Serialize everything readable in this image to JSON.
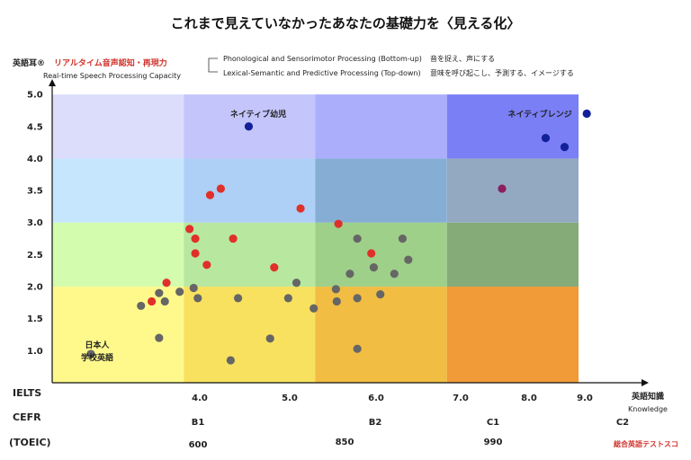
{
  "title": "これまで見えていなかったあなたの基礎力を〈見える化〉",
  "y_axis": {
    "name": "英語耳®",
    "name_red": "リアルタイム音声認知・再現力",
    "subtitle": "Real-time Speech Processing Capacity"
  },
  "x_axis": {
    "name": "英語知識",
    "name_en": "Knowledge",
    "row_labels": [
      "IELTS",
      "CEFR",
      "(TOEIC)"
    ],
    "ielts_ticks": [
      "4.0",
      "5.0",
      "6.0",
      "7.0",
      "8.0",
      "9.0"
    ],
    "cefr_ticks": [
      "B1",
      "B2",
      "C1",
      "C2"
    ],
    "toeic_ticks": [
      "600",
      "850",
      "990"
    ],
    "toeic_note": "総合英語テストスコ"
  },
  "legend": {
    "bottom_up": "Phonological and Sensorimotor Processing (Bottom-up)",
    "bottom_up_ja": "音を捉え、声にする",
    "top_down": "Lexical-Semantic and Predictive Processing (Top-down)",
    "top_down_ja": "意味を呼び起こし、予測する、イメージする"
  },
  "annotations": {
    "native_child": "ネイティブ幼児",
    "native_range": "ネイティブレンジ",
    "jp_school_1": "日本人",
    "jp_school_2": "学校英語"
  },
  "colors": {
    "red": "#e0302a",
    "gray": "#666666",
    "navy": "#12209a",
    "purple": "#8c1f5e"
  },
  "chart_data": {
    "type": "scatter",
    "x_label": "英語知識 Knowledge",
    "y_label": "英語耳® Real-time Speech Processing Capacity",
    "y_ticks": [
      1.0,
      1.5,
      2.0,
      2.5,
      3.0,
      3.5,
      4.0,
      4.5,
      5.0
    ],
    "xlim": [
      2.4,
      9.5
    ],
    "ylim": [
      0.5,
      5.1
    ],
    "grid": {
      "x_bounds": [
        2.4,
        4.0,
        5.6,
        7.2,
        8.8
      ],
      "y_bounds": [
        0.5,
        2.0,
        3.0,
        4.0,
        5.0
      ]
    },
    "series": [
      {
        "color": "red",
        "points": [
          [
            3.61,
            1.77
          ],
          [
            3.79,
            2.06
          ],
          [
            4.07,
            2.9
          ],
          [
            4.14,
            2.52
          ],
          [
            4.14,
            2.75
          ],
          [
            4.28,
            2.34
          ],
          [
            4.32,
            3.43
          ],
          [
            4.45,
            3.53
          ],
          [
            4.6,
            2.75
          ],
          [
            5.1,
            2.3
          ],
          [
            5.42,
            3.22
          ],
          [
            5.88,
            2.98
          ],
          [
            6.28,
            2.52
          ]
        ]
      },
      {
        "color": "gray",
        "points": [
          [
            2.87,
            0.95
          ],
          [
            3.48,
            1.7
          ],
          [
            3.7,
            1.2
          ],
          [
            3.7,
            1.9
          ],
          [
            3.77,
            1.77
          ],
          [
            3.95,
            1.92
          ],
          [
            4.12,
            1.98
          ],
          [
            4.17,
            1.82
          ],
          [
            4.57,
            0.85
          ],
          [
            4.66,
            1.82
          ],
          [
            5.05,
            1.19
          ],
          [
            5.27,
            1.82
          ],
          [
            5.37,
            2.06
          ],
          [
            5.58,
            1.66
          ],
          [
            5.85,
            1.96
          ],
          [
            5.86,
            1.77
          ],
          [
            6.02,
            2.2
          ],
          [
            6.11,
            2.75
          ],
          [
            6.11,
            1.82
          ],
          [
            6.11,
            1.03
          ],
          [
            6.31,
            2.3
          ],
          [
            6.39,
            1.88
          ],
          [
            6.56,
            2.2
          ],
          [
            6.66,
            2.75
          ],
          [
            6.73,
            2.42
          ]
        ]
      },
      {
        "color": "navy",
        "points": [
          [
            4.79,
            4.5
          ],
          [
            8.4,
            4.32
          ],
          [
            8.63,
            4.18
          ],
          [
            8.9,
            4.7
          ]
        ]
      },
      {
        "color": "purple",
        "points": [
          [
            7.87,
            3.53
          ]
        ]
      }
    ]
  }
}
